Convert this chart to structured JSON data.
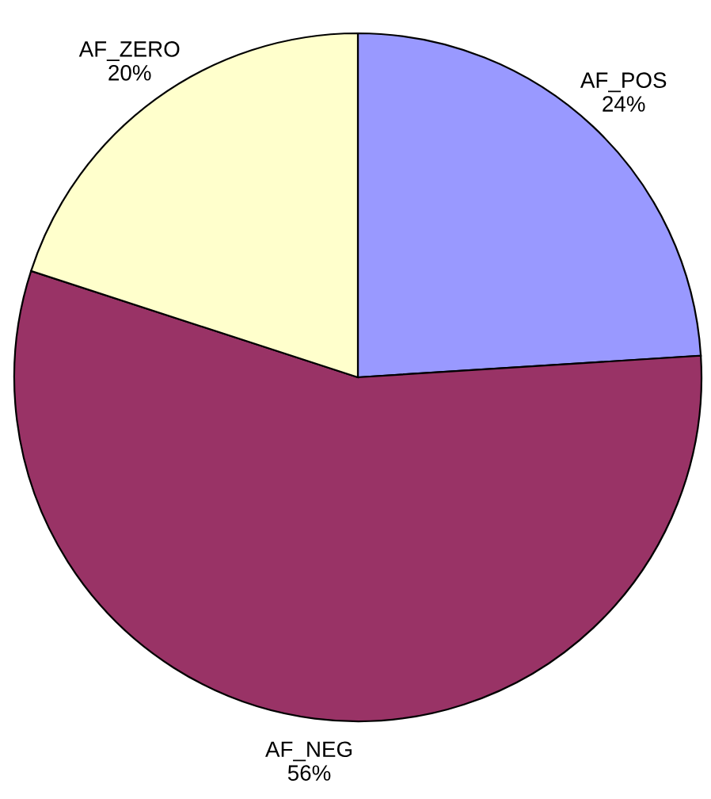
{
  "chart_data": {
    "type": "pie",
    "categories": [
      "AF_POS",
      "AF_NEG",
      "AF_ZERO"
    ],
    "values": [
      24,
      56,
      20
    ],
    "colors": [
      "#9999ff",
      "#993366",
      "#ffffcc"
    ],
    "value_labels": [
      "24%",
      "56%",
      "20%"
    ]
  }
}
